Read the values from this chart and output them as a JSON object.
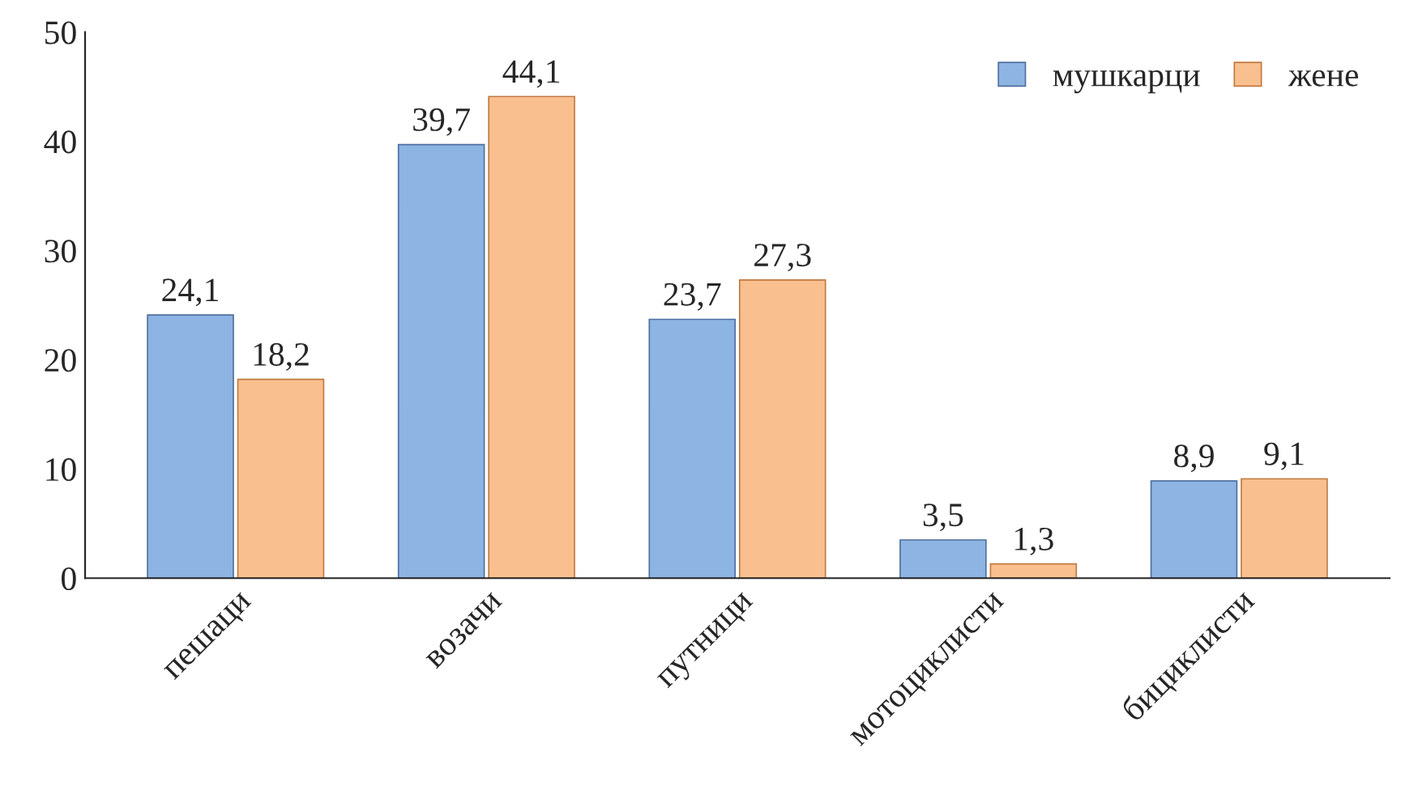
{
  "chart_data": {
    "type": "bar",
    "categories": [
      "пешаци",
      "возачи",
      "путници",
      "мотоциклисти",
      "бициклисти"
    ],
    "series": [
      {
        "name": "мушкарци",
        "color": "#8db4e2",
        "values": [
          24.1,
          39.7,
          23.7,
          3.5,
          8.9
        ],
        "value_labels": [
          "24,1",
          "39,7",
          "23,7",
          "3,5",
          "8,9"
        ]
      },
      {
        "name": "жене",
        "color": "#fabf8f",
        "values": [
          18.2,
          44.1,
          27.3,
          1.3,
          9.1
        ],
        "value_labels": [
          "18,2",
          "44,1",
          "27,3",
          "1,3",
          "9,1"
        ]
      }
    ],
    "ylim": [
      0,
      50
    ],
    "yticks": [
      0,
      10,
      20,
      30,
      40,
      50
    ],
    "grid": false,
    "legend": "top right"
  }
}
